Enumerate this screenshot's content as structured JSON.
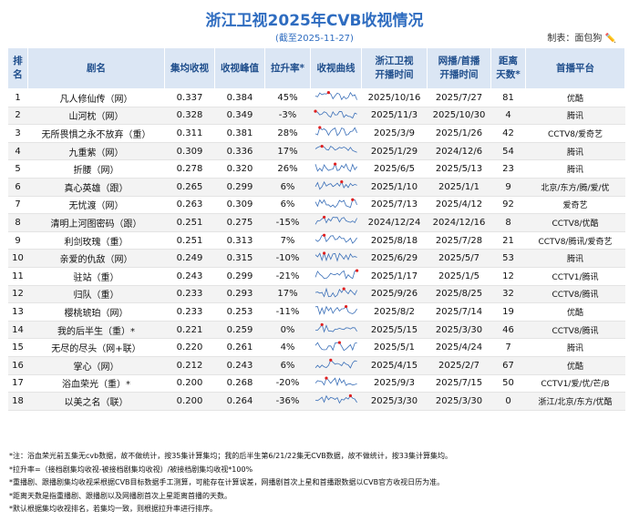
{
  "header": {
    "title": "浙江卫视2025年CVB收视情况",
    "subtitle": "(截至2025-11-27)",
    "author": "制表：面包狗"
  },
  "table": {
    "columns": [
      "排名",
      "剧名",
      "集均收视",
      "收视峰值",
      "拉升率*",
      "收视曲线",
      "浙江卫视\n开播时间",
      "网播/首播\n开播时间",
      "距离\n天数*",
      "首播平台"
    ],
    "rows": [
      [
        "1",
        "凡人修仙传（网）",
        "0.337",
        "0.384",
        "45%",
        "2025/10/16",
        "2025/7/27",
        "81",
        "优酷"
      ],
      [
        "2",
        "山河枕（网）",
        "0.328",
        "0.349",
        "-3%",
        "2025/11/3",
        "2025/10/30",
        "4",
        "腾讯"
      ],
      [
        "3",
        "无所畏惧之永不放弃（重）",
        "0.311",
        "0.381",
        "28%",
        "2025/3/9",
        "2025/1/26",
        "42",
        "CCTV8/爱奇艺"
      ],
      [
        "4",
        "九重紫（网）",
        "0.309",
        "0.336",
        "17%",
        "2025/1/29",
        "2024/12/6",
        "54",
        "腾讯"
      ],
      [
        "5",
        "折腰（网）",
        "0.278",
        "0.320",
        "26%",
        "2025/6/5",
        "2025/5/13",
        "23",
        "腾讯"
      ],
      [
        "6",
        "真心英雄（跟）",
        "0.265",
        "0.299",
        "6%",
        "2025/1/10",
        "2025/1/1",
        "9",
        "北京/东方/腾/爱/优"
      ],
      [
        "7",
        "无忧渡（网）",
        "0.263",
        "0.309",
        "6%",
        "2025/7/13",
        "2025/4/12",
        "92",
        "爱奇艺"
      ],
      [
        "8",
        "清明上河图密码（跟）",
        "0.251",
        "0.275",
        "-15%",
        "2024/12/24",
        "2024/12/16",
        "8",
        "CCTV8/优酷"
      ],
      [
        "9",
        "利剑玫瑰（重）",
        "0.251",
        "0.313",
        "7%",
        "2025/8/18",
        "2025/7/28",
        "21",
        "CCTV8/腾讯/爱奇艺"
      ],
      [
        "10",
        "亲爱的仇敌（网）",
        "0.249",
        "0.315",
        "-10%",
        "2025/6/29",
        "2025/5/7",
        "53",
        "腾讯"
      ],
      [
        "11",
        "驻站（重）",
        "0.243",
        "0.299",
        "-21%",
        "2025/1/17",
        "2025/1/5",
        "12",
        "CCTV1/腾讯"
      ],
      [
        "12",
        "归队（重）",
        "0.233",
        "0.293",
        "17%",
        "2025/9/26",
        "2025/8/25",
        "32",
        "CCTV8/腾讯"
      ],
      [
        "13",
        "樱桃琥珀（网）",
        "0.233",
        "0.253",
        "-11%",
        "2025/8/2",
        "2025/7/14",
        "19",
        "优酷"
      ],
      [
        "14",
        "我的后半生（重）*",
        "0.221",
        "0.259",
        "0%",
        "2025/5/15",
        "2025/3/30",
        "46",
        "CCTV8/腾讯"
      ],
      [
        "15",
        "无尽的尽头（网+联）",
        "0.220",
        "0.261",
        "4%",
        "2025/5/1",
        "2025/4/24",
        "7",
        "腾讯"
      ],
      [
        "16",
        "掌心（网）",
        "0.212",
        "0.243",
        "6%",
        "2025/4/15",
        "2025/2/7",
        "67",
        "优酷"
      ],
      [
        "17",
        "浴血荣光（重）*",
        "0.200",
        "0.268",
        "-20%",
        "2025/9/3",
        "2025/7/15",
        "50",
        "CCTV1/爱/优/芒/B"
      ],
      [
        "18",
        "以美之名（联）",
        "0.200",
        "0.264",
        "-36%",
        "2025/3/30",
        "2025/3/30",
        "0",
        "浙江/北京/东方/优酷"
      ]
    ]
  },
  "notes": [
    "*注：浴血荣光前五集无cvb数据，故不做统计，按35集计算集均；我的后半生第6/21/22集无CVB数据，故不做统计，按33集计算集均。",
    "*拉升率=（接档剧集均收视-被接档剧集均收视）/被接档剧集均收视*100%",
    "*重播剧、跟播剧集均收视采根据CVB目标数据手工测算，可能存在计算误差，网播剧首次上星和首播跟数据以CVB官方收视日历为准。",
    "*距离天数是指重播剧、跟播剧以及网播剧首次上星距离首播的天数。",
    "*默认根据集均收视排名，若集均一致，则根据拉升率进行排序。"
  ]
}
